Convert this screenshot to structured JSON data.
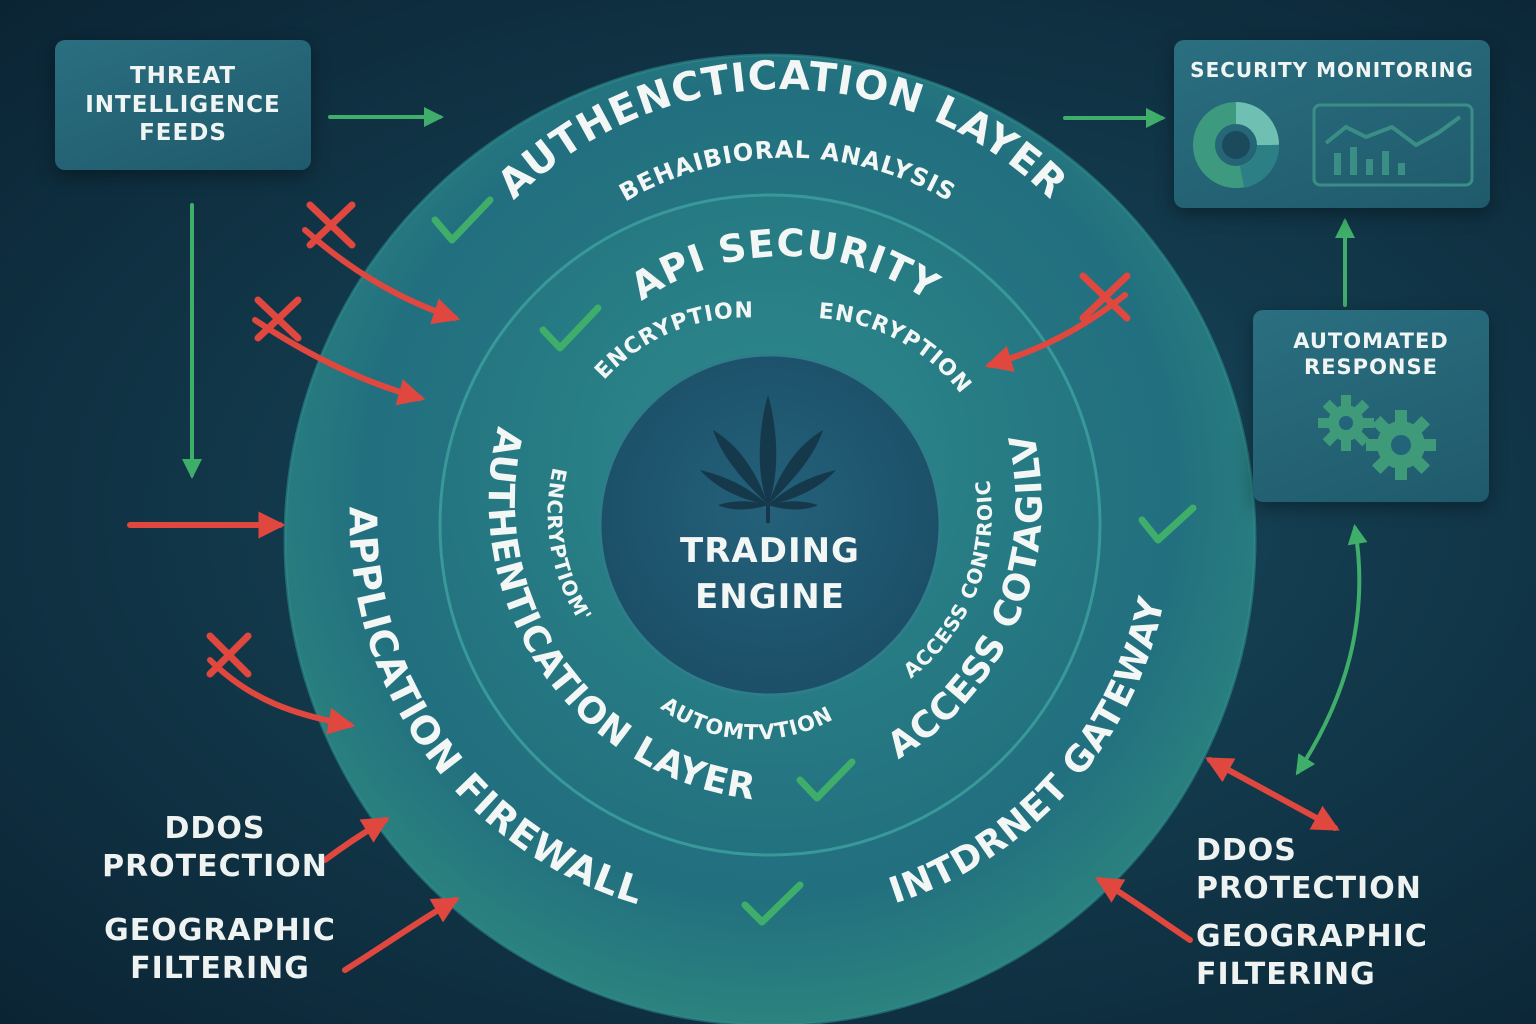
{
  "center": {
    "line1": "TRADING",
    "line2": "ENGINE",
    "icon": "leaf-icon"
  },
  "rings": {
    "outer_top": "AUTHENCTICATION LAYER",
    "outer_sub": "BEHAIBIORAL ANALYSIS",
    "outer_left": "APPLICATION FIREWALL",
    "outer_right": "INTDRNET GATEWAY",
    "middle_top": "API SECURITY",
    "middle_enc_left": "ENCRYPTION",
    "middle_enc_right": "ENCRYPTION",
    "middle_left": "AUTHENTICATION LAYER",
    "middle_right": "ACCESS COTAGILV",
    "inner_left": "ENCRYPTIOM'",
    "inner_right": "ACCESS CONTROIC",
    "inner_bottom": "AUTOMTVTION"
  },
  "boxes": {
    "threat": {
      "line1": "THREAT",
      "line2": "INTELLIGENCE",
      "line3": "FEEDS"
    },
    "monitoring": {
      "title": "SECURITY MONITORING",
      "icons": [
        "donut-chart-icon",
        "line-chart-icon"
      ]
    },
    "automated": {
      "line1": "AUTOMATED",
      "line2": "RESPONSE",
      "icon": "gears-icon"
    }
  },
  "left_labels": {
    "ddos1": "DDOS",
    "ddos2": "PROTECTION",
    "geo1": "GEOGRAPHIC",
    "geo2": "FILTERING"
  },
  "right_labels": {
    "ddos1": "DDOS",
    "ddos2": "PROTECTION",
    "geo1": "GEOGRAPHIC",
    "geo2": "FILTERING"
  },
  "colors": {
    "allowed": "#3fae6a",
    "blocked": "#e0473f",
    "ring_outer": "#23707f",
    "ring_middle": "#2a7f86",
    "core": "#1f5a72"
  }
}
